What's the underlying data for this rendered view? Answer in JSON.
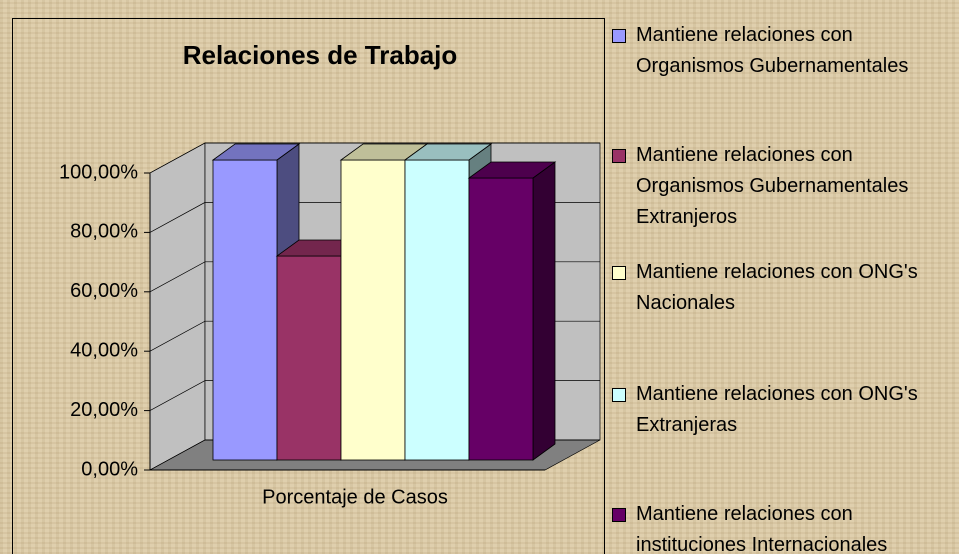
{
  "chart_data": {
    "type": "bar3d",
    "title": "Relaciones de Trabajo",
    "categories": [
      "Porcentaje de Casos"
    ],
    "series": [
      {
        "name": "Mantiene relaciones con Organismos Gubernamentales",
        "color": "#9999ff",
        "values": [
          100
        ]
      },
      {
        "name": "Mantiene relaciones con Organismos Gubernamentales Extranjeros",
        "color": "#993366",
        "values": [
          68
        ]
      },
      {
        "name": "Mantiene relaciones con ONG's Nacionales",
        "color": "#ffffcc",
        "values": [
          100
        ]
      },
      {
        "name": "Mantiene relaciones con ONG's Extranjeras",
        "color": "#ccffff",
        "values": [
          100
        ]
      },
      {
        "name": "Mantiene relaciones con instituciones Internacionales",
        "color": "#660066",
        "values": [
          94
        ]
      }
    ],
    "ylim": [
      0,
      100
    ],
    "yticks": [
      {
        "value": 0,
        "label": "0,00%"
      },
      {
        "value": 20,
        "label": "20,00%"
      },
      {
        "value": 40,
        "label": "40,00%"
      },
      {
        "value": 60,
        "label": "60,00%"
      },
      {
        "value": 80,
        "label": "80,00%"
      },
      {
        "value": 100,
        "label": "100,00%"
      }
    ],
    "grid": true,
    "legend": "right"
  }
}
